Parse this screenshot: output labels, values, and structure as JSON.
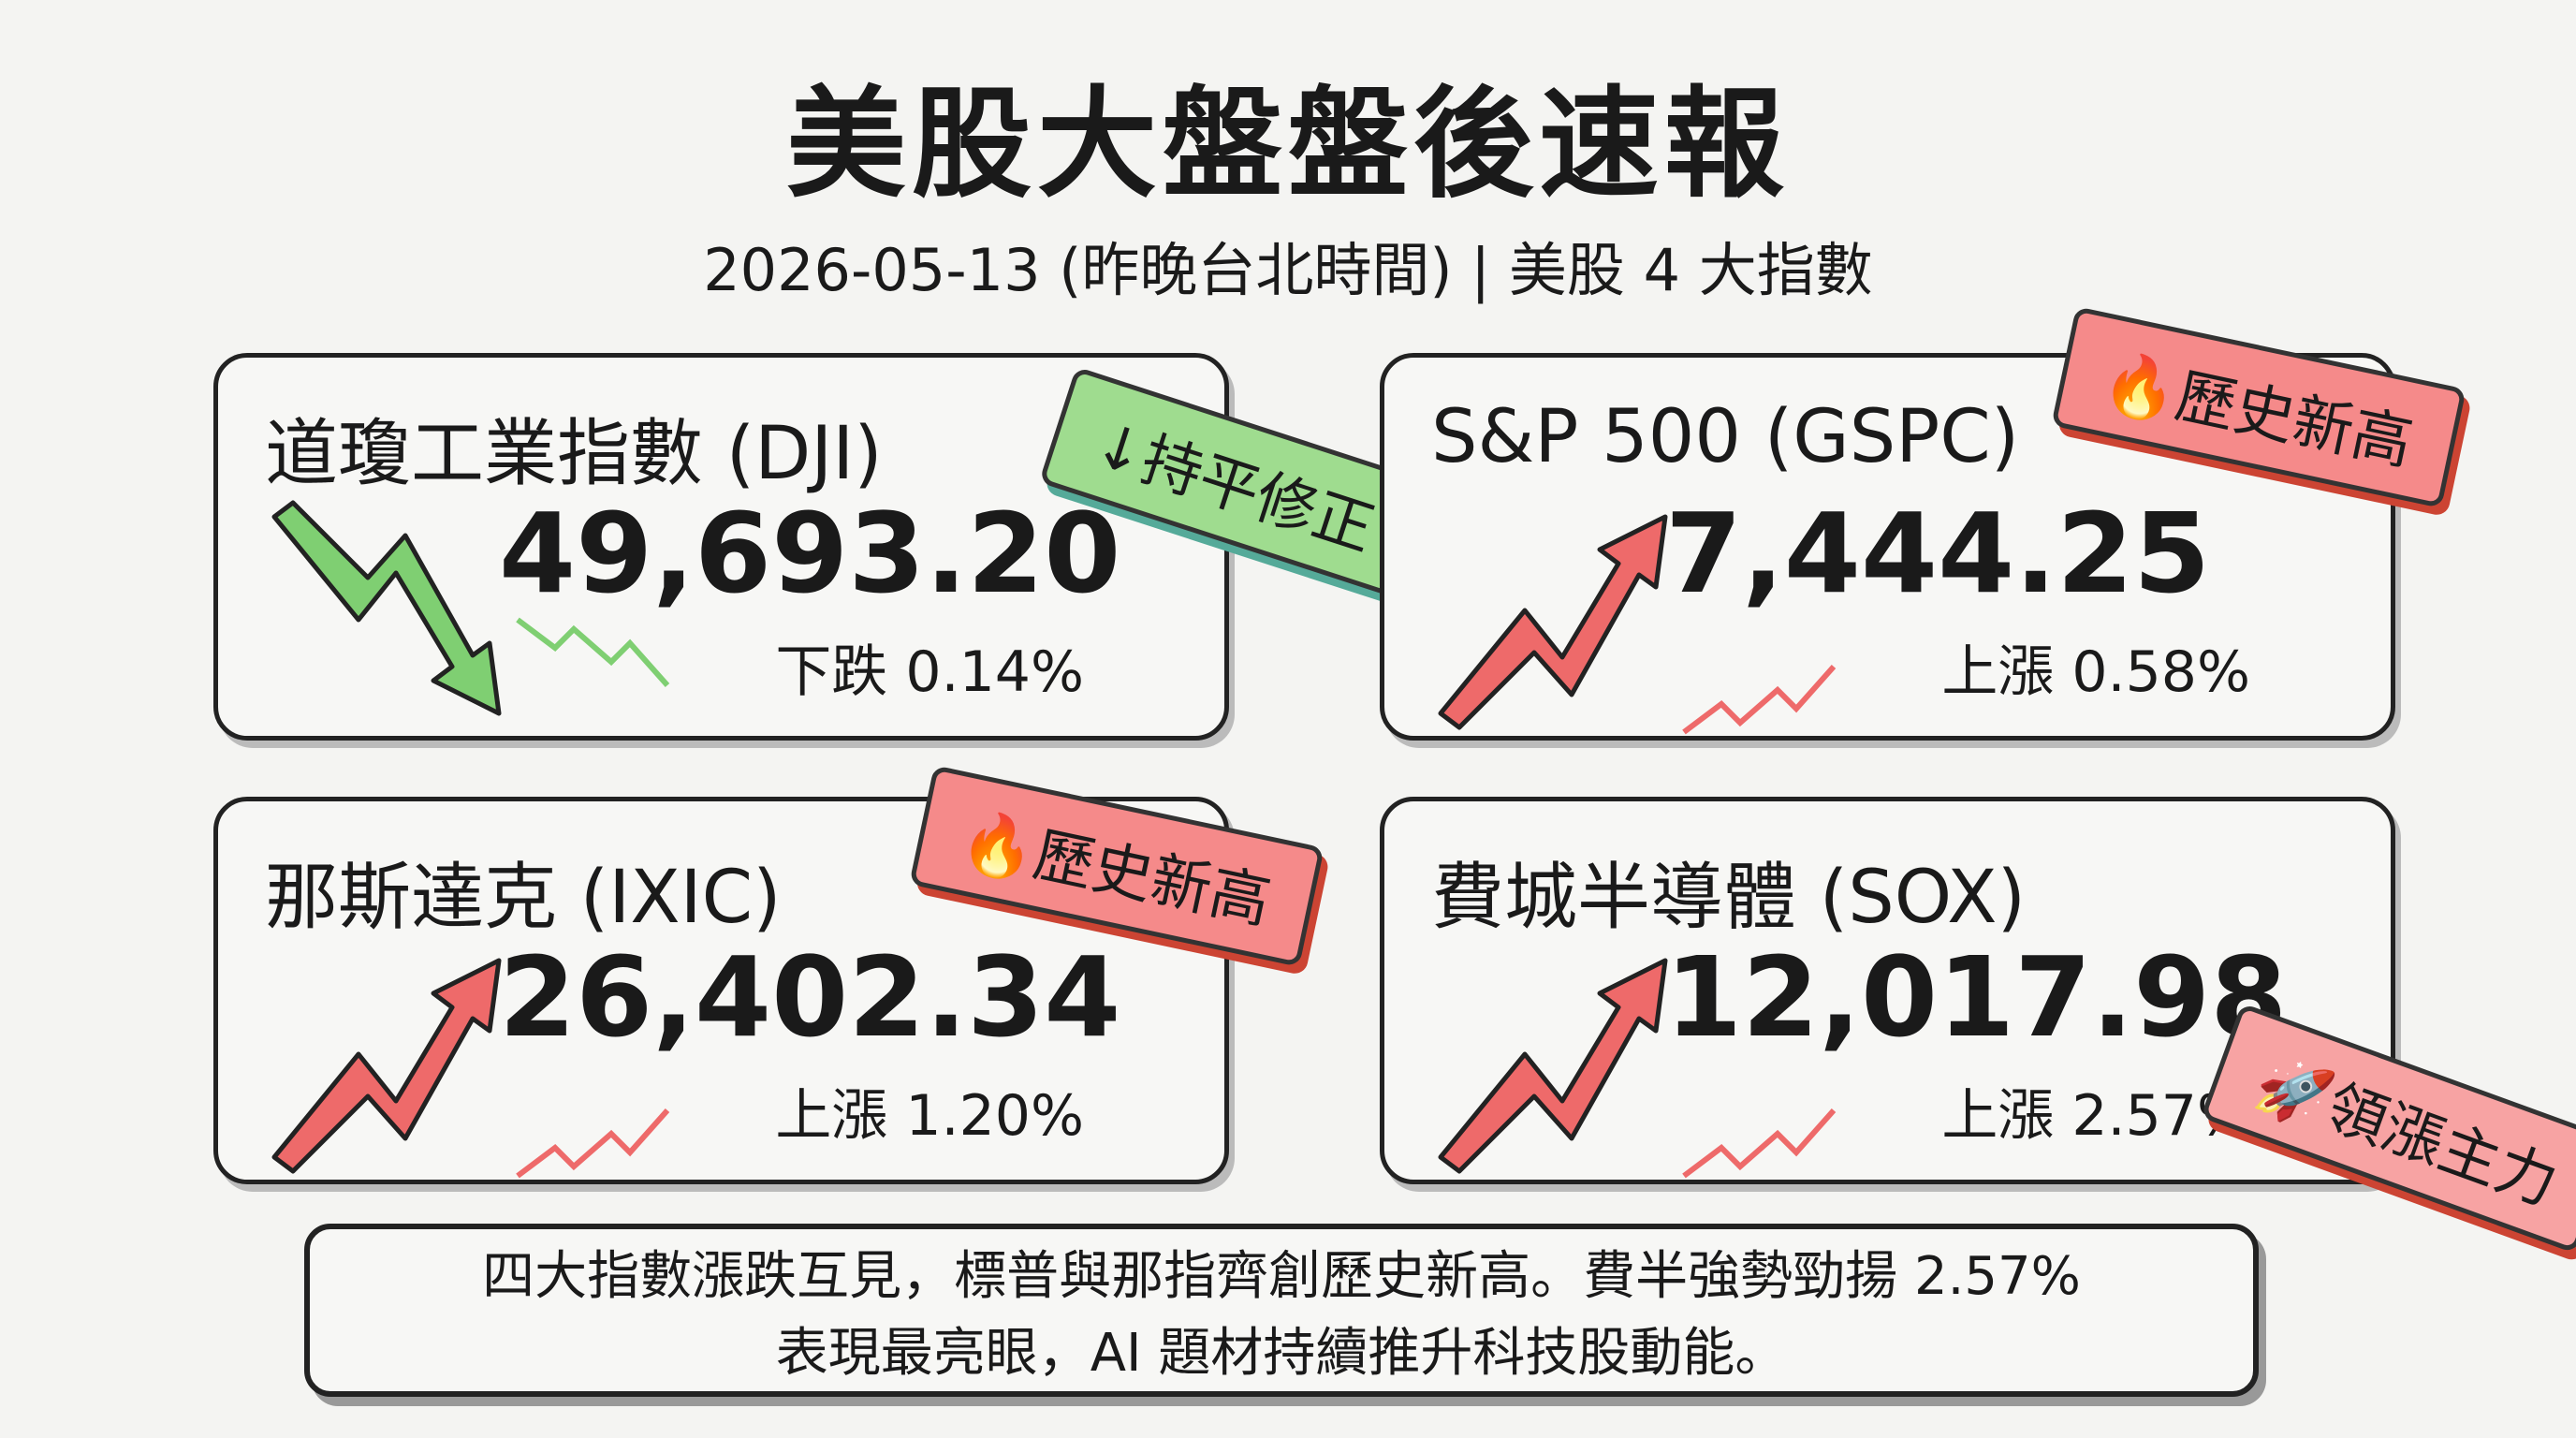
{
  "header": {
    "title": "美股大盤盤後速報",
    "subtitle": "2026-05-13 (昨晚台北時間) | 美股 4 大指數"
  },
  "cards": [
    {
      "name": "道瓊工業指數 (DJI)",
      "value": "49,693.20",
      "change": "下跌 0.14%",
      "tag": "↓持平修正",
      "trend": "down",
      "tag_color": "#9fdc8f"
    },
    {
      "name": "S&P 500 (GSPC)",
      "value": "7,444.25",
      "change": "上漲 0.58%",
      "tag": "🔥歷史新高",
      "trend": "up",
      "tag_color": "#f58a8a"
    },
    {
      "name": "那斯達克 (IXIC)",
      "value": "26,402.34",
      "change": "上漲 1.20%",
      "tag": "🔥歷史新高",
      "trend": "up",
      "tag_color": "#f58a8a"
    },
    {
      "name": "費城半導體 (SOX)",
      "value": "12,017.98",
      "change": "上漲 2.57%",
      "tag": "🚀領漲主力",
      "trend": "up",
      "tag_color": "#f7a3a3"
    }
  ],
  "summary": {
    "lines": [
      "四大指數漲跌互見，標普與那指齊創歷史新高。費半強勢勁揚 2.57%",
      "表現最亮眼，AI 題材持續推升科技股動能。"
    ]
  }
}
